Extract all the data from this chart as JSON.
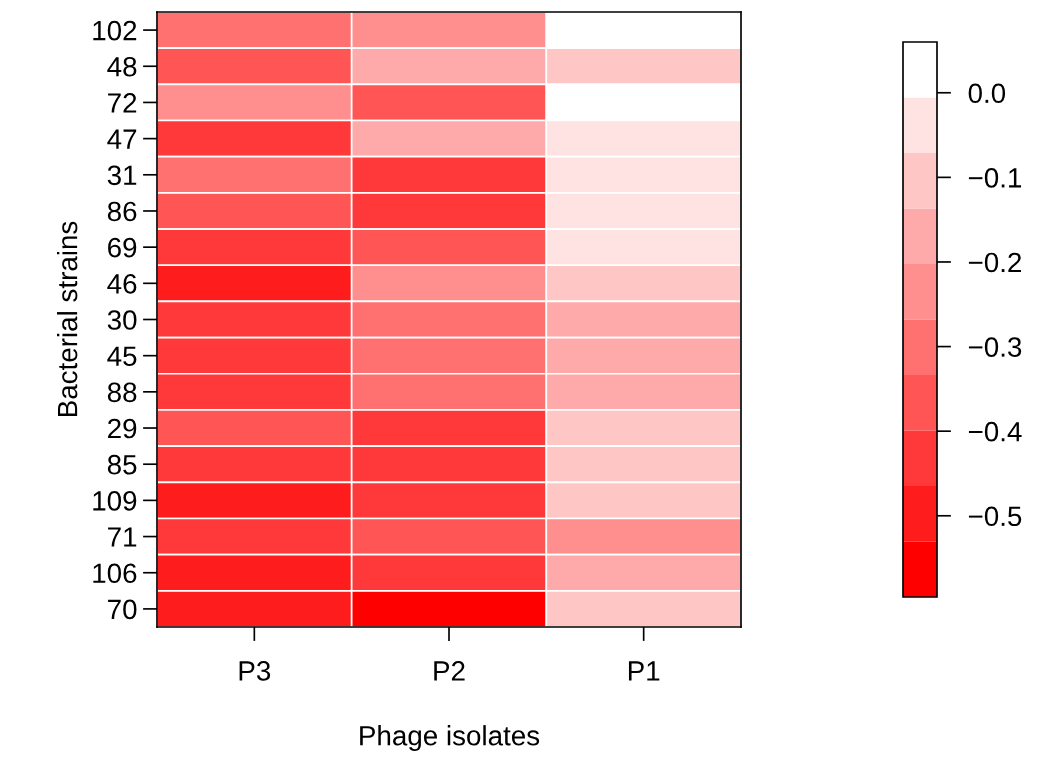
{
  "chart_data": {
    "type": "heatmap",
    "xlabel": "Phage isolates",
    "ylabel": "Bacterial strains",
    "categories": [
      "P3",
      "P2",
      "P1"
    ],
    "y_categories": [
      "102",
      "48",
      "72",
      "47",
      "31",
      "86",
      "69",
      "46",
      "30",
      "45",
      "88",
      "29",
      "85",
      "109",
      "71",
      "106",
      "70"
    ],
    "cells": [
      [
        -0.3,
        -0.24,
        0.03
      ],
      [
        -0.37,
        -0.17,
        -0.1
      ],
      [
        -0.24,
        -0.37,
        0.03
      ],
      [
        -0.43,
        -0.17,
        -0.04
      ],
      [
        -0.3,
        -0.43,
        -0.04
      ],
      [
        -0.37,
        -0.43,
        -0.04
      ],
      [
        -0.43,
        -0.37,
        -0.04
      ],
      [
        -0.5,
        -0.24,
        -0.1
      ],
      [
        -0.43,
        -0.3,
        -0.17
      ],
      [
        -0.43,
        -0.3,
        -0.17
      ],
      [
        -0.43,
        -0.3,
        -0.17
      ],
      [
        -0.37,
        -0.43,
        -0.1
      ],
      [
        -0.43,
        -0.43,
        -0.1
      ],
      [
        -0.5,
        -0.43,
        -0.1
      ],
      [
        -0.43,
        -0.37,
        -0.24
      ],
      [
        -0.5,
        -0.43,
        -0.17
      ],
      [
        -0.5,
        -0.56,
        -0.1
      ]
    ],
    "colors": [
      "#ff0000",
      "#ff1c1c",
      "#ff3939",
      "#ff5555",
      "#ff7171",
      "#ff8e8e",
      "#ffaaaa",
      "#ffc6c6",
      "#ffe3e3",
      "#ffffff"
    ],
    "clim": [
      -0.596,
      0.06
    ],
    "cticks": [
      {
        "value": 0.0,
        "label": "0.0"
      },
      {
        "value": -0.1,
        "label": "−0.1"
      },
      {
        "value": -0.2,
        "label": "−0.2"
      },
      {
        "value": -0.3,
        "label": "−0.3"
      },
      {
        "value": -0.4,
        "label": "−0.4"
      },
      {
        "value": -0.5,
        "label": "−0.5"
      }
    ]
  }
}
